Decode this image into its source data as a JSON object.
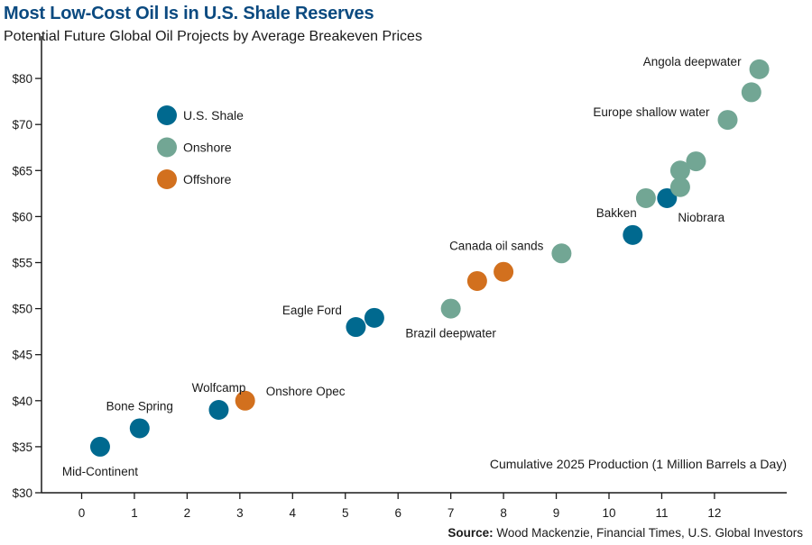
{
  "chart_data": {
    "type": "scatter",
    "title": "Most Low-Cost Oil Is in U.S. Shale Reserves",
    "subtitle": "Potential Future Global Oil Projects by Average Breakeven Prices",
    "xlabel": "Cumulative 2025 Production (1 Million Barrels a Day)",
    "ylabel": "",
    "x_ticks": [
      "0",
      "1",
      "2",
      "3",
      "4",
      "5",
      "6",
      "7",
      "8",
      "9",
      "10",
      "11",
      "12"
    ],
    "x_tick_values": [
      0,
      1,
      2,
      3,
      4,
      5,
      6,
      7,
      8,
      9,
      10,
      11,
      12
    ],
    "xlim": [
      -0.75,
      13.35
    ],
    "y_ticks": [
      "$30",
      "$35",
      "$40",
      "$45",
      "$50",
      "$55",
      "$60",
      "$65",
      "$70",
      "$80"
    ],
    "y_tick_values": [
      30,
      35,
      40,
      45,
      50,
      55,
      60,
      65,
      70,
      80
    ],
    "ylim": [
      30,
      80
    ],
    "grid": false,
    "legend_position": "top-left",
    "source_label": "Source:",
    "source_text": " Wood Mackenzie, Financial Times, U.S. Global Investors",
    "series": [
      {
        "name": "U.S. Shale",
        "color": "#00698f",
        "points": [
          {
            "x": 0.35,
            "y": 35,
            "label": "Mid-Continent",
            "label_pos": "below"
          },
          {
            "x": 1.1,
            "y": 37,
            "label": "Bone Spring",
            "label_pos": "above"
          },
          {
            "x": 2.6,
            "y": 39,
            "label": "Wolfcamp",
            "label_pos": "above"
          },
          {
            "x": 5.2,
            "y": 48,
            "label": "",
            "label_pos": ""
          },
          {
            "x": 5.55,
            "y": 49,
            "label": "Eagle Ford",
            "label_pos": "left-far"
          },
          {
            "x": 10.45,
            "y": 58,
            "label": "Bakken",
            "label_pos": "above-left"
          },
          {
            "x": 11.1,
            "y": 62,
            "label": "Niobrara",
            "label_pos": "below-right"
          }
        ]
      },
      {
        "name": "Onshore",
        "color": "#72a694",
        "points": [
          {
            "x": 7.0,
            "y": 50,
            "label": "Brazil deepwater",
            "label_pos": "below"
          },
          {
            "x": 9.1,
            "y": 56,
            "label": "Canada oil sands",
            "label_pos": "left"
          },
          {
            "x": 10.7,
            "y": 62,
            "label": "",
            "label_pos": ""
          },
          {
            "x": 11.35,
            "y": 63.2,
            "label": "",
            "label_pos": ""
          },
          {
            "x": 11.35,
            "y": 65,
            "label": "",
            "label_pos": ""
          },
          {
            "x": 11.65,
            "y": 66,
            "label": "",
            "label_pos": ""
          },
          {
            "x": 12.25,
            "y": 71,
            "label": "Europe shallow water",
            "label_pos": "left"
          },
          {
            "x": 12.7,
            "y": 77,
            "label": "",
            "label_pos": ""
          },
          {
            "x": 12.85,
            "y": 82,
            "label": "Angola deepwater",
            "label_pos": "left"
          }
        ]
      },
      {
        "name": "Offshore",
        "color": "#d2701e",
        "points": [
          {
            "x": 3.1,
            "y": 40,
            "label": "Onshore Opec",
            "label_pos": "right"
          },
          {
            "x": 7.5,
            "y": 53,
            "label": "",
            "label_pos": ""
          },
          {
            "x": 8.0,
            "y": 54,
            "label": "",
            "label_pos": ""
          }
        ]
      }
    ]
  }
}
